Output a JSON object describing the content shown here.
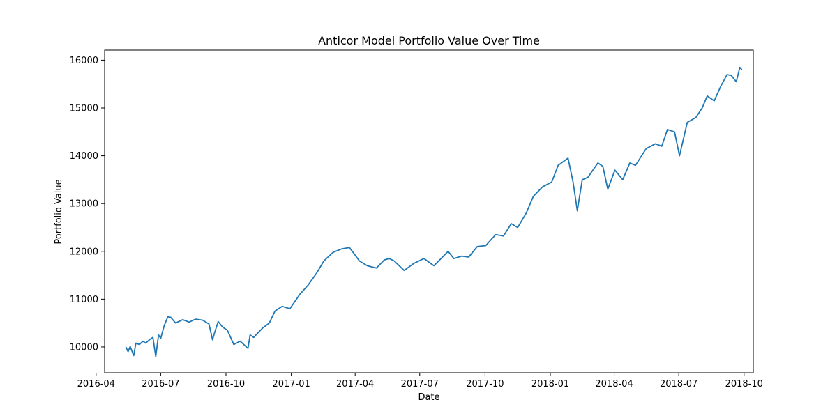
{
  "chart_data": {
    "type": "line",
    "title": "Anticor Model Portfolio Value Over Time",
    "xlabel": "Date",
    "ylabel": "Portfolio Value",
    "xlim": [
      "2016-04-13",
      "2018-10-14"
    ],
    "ylim": [
      9460,
      16210
    ],
    "x_ticks": [
      "2016-04",
      "2016-07",
      "2016-10",
      "2017-01",
      "2017-04",
      "2017-07",
      "2017-10",
      "2018-01",
      "2018-04",
      "2018-07",
      "2018-10"
    ],
    "y_ticks": [
      10000,
      11000,
      12000,
      13000,
      14000,
      15000,
      16000
    ],
    "grid": false,
    "legend": "none",
    "colors": {
      "line": "#1f77b4"
    },
    "series": [
      {
        "x": [
          "2016-05-13",
          "2016-05-16",
          "2016-05-19",
          "2016-05-24",
          "2016-05-27",
          "2016-06-01",
          "2016-06-06",
          "2016-06-10",
          "2016-06-15",
          "2016-06-20",
          "2016-06-24",
          "2016-06-28",
          "2016-07-01",
          "2016-07-06",
          "2016-07-11",
          "2016-07-15",
          "2016-07-22",
          "2016-08-01",
          "2016-08-10",
          "2016-08-19",
          "2016-08-29",
          "2016-09-07",
          "2016-09-12",
          "2016-09-15",
          "2016-09-20",
          "2016-09-26",
          "2016-10-03",
          "2016-10-12",
          "2016-10-21",
          "2016-11-01",
          "2016-11-04",
          "2016-11-09",
          "2016-11-14",
          "2016-11-22",
          "2016-12-01",
          "2016-12-09",
          "2016-12-19",
          "2016-12-30",
          "2017-01-13",
          "2017-01-25",
          "2017-02-06",
          "2017-02-16",
          "2017-03-01",
          "2017-03-13",
          "2017-03-24",
          "2017-04-07",
          "2017-04-18",
          "2017-05-01",
          "2017-05-12",
          "2017-05-19",
          "2017-05-26",
          "2017-06-09",
          "2017-06-23",
          "2017-07-07",
          "2017-07-21",
          "2017-07-31",
          "2017-08-10",
          "2017-08-18",
          "2017-08-29",
          "2017-09-08",
          "2017-09-20",
          "2017-10-02",
          "2017-10-16",
          "2017-10-27",
          "2017-11-07",
          "2017-11-16",
          "2017-11-28",
          "2017-12-08",
          "2017-12-21",
          "2018-01-03",
          "2018-01-12",
          "2018-01-26",
          "2018-02-02",
          "2018-02-08",
          "2018-02-15",
          "2018-02-23",
          "2018-03-09",
          "2018-03-16",
          "2018-03-23",
          "2018-04-02",
          "2018-04-13",
          "2018-04-23",
          "2018-05-01",
          "2018-05-16",
          "2018-05-29",
          "2018-06-07",
          "2018-06-15",
          "2018-06-25",
          "2018-07-02",
          "2018-07-13",
          "2018-07-25",
          "2018-08-03",
          "2018-08-10",
          "2018-08-20",
          "2018-08-29",
          "2018-09-07",
          "2018-09-13",
          "2018-09-20",
          "2018-09-25",
          "2018-09-28"
        ],
        "values": [
          10000,
          9900,
          10010,
          9820,
          10080,
          10050,
          10120,
          10080,
          10150,
          10200,
          9800,
          10250,
          10180,
          10450,
          10630,
          10620,
          10500,
          10570,
          10520,
          10580,
          10560,
          10480,
          10150,
          10300,
          10530,
          10420,
          10350,
          10050,
          10120,
          9970,
          10250,
          10200,
          10280,
          10400,
          10500,
          10750,
          10850,
          10800,
          11100,
          11300,
          11550,
          11800,
          11980,
          12050,
          12080,
          11800,
          11700,
          11650,
          11820,
          11850,
          11800,
          11600,
          11750,
          11850,
          11700,
          11850,
          12000,
          11850,
          11900,
          11880,
          12100,
          12120,
          12350,
          12320,
          12580,
          12500,
          12800,
          13150,
          13350,
          13450,
          13800,
          13950,
          13450,
          12850,
          13500,
          13550,
          13850,
          13780,
          13300,
          13700,
          13500,
          13850,
          13800,
          14150,
          14250,
          14200,
          14550,
          14500,
          14000,
          14700,
          14800,
          15000,
          15250,
          15150,
          15450,
          15700,
          15680,
          15550,
          15850,
          15800
        ]
      }
    ]
  }
}
